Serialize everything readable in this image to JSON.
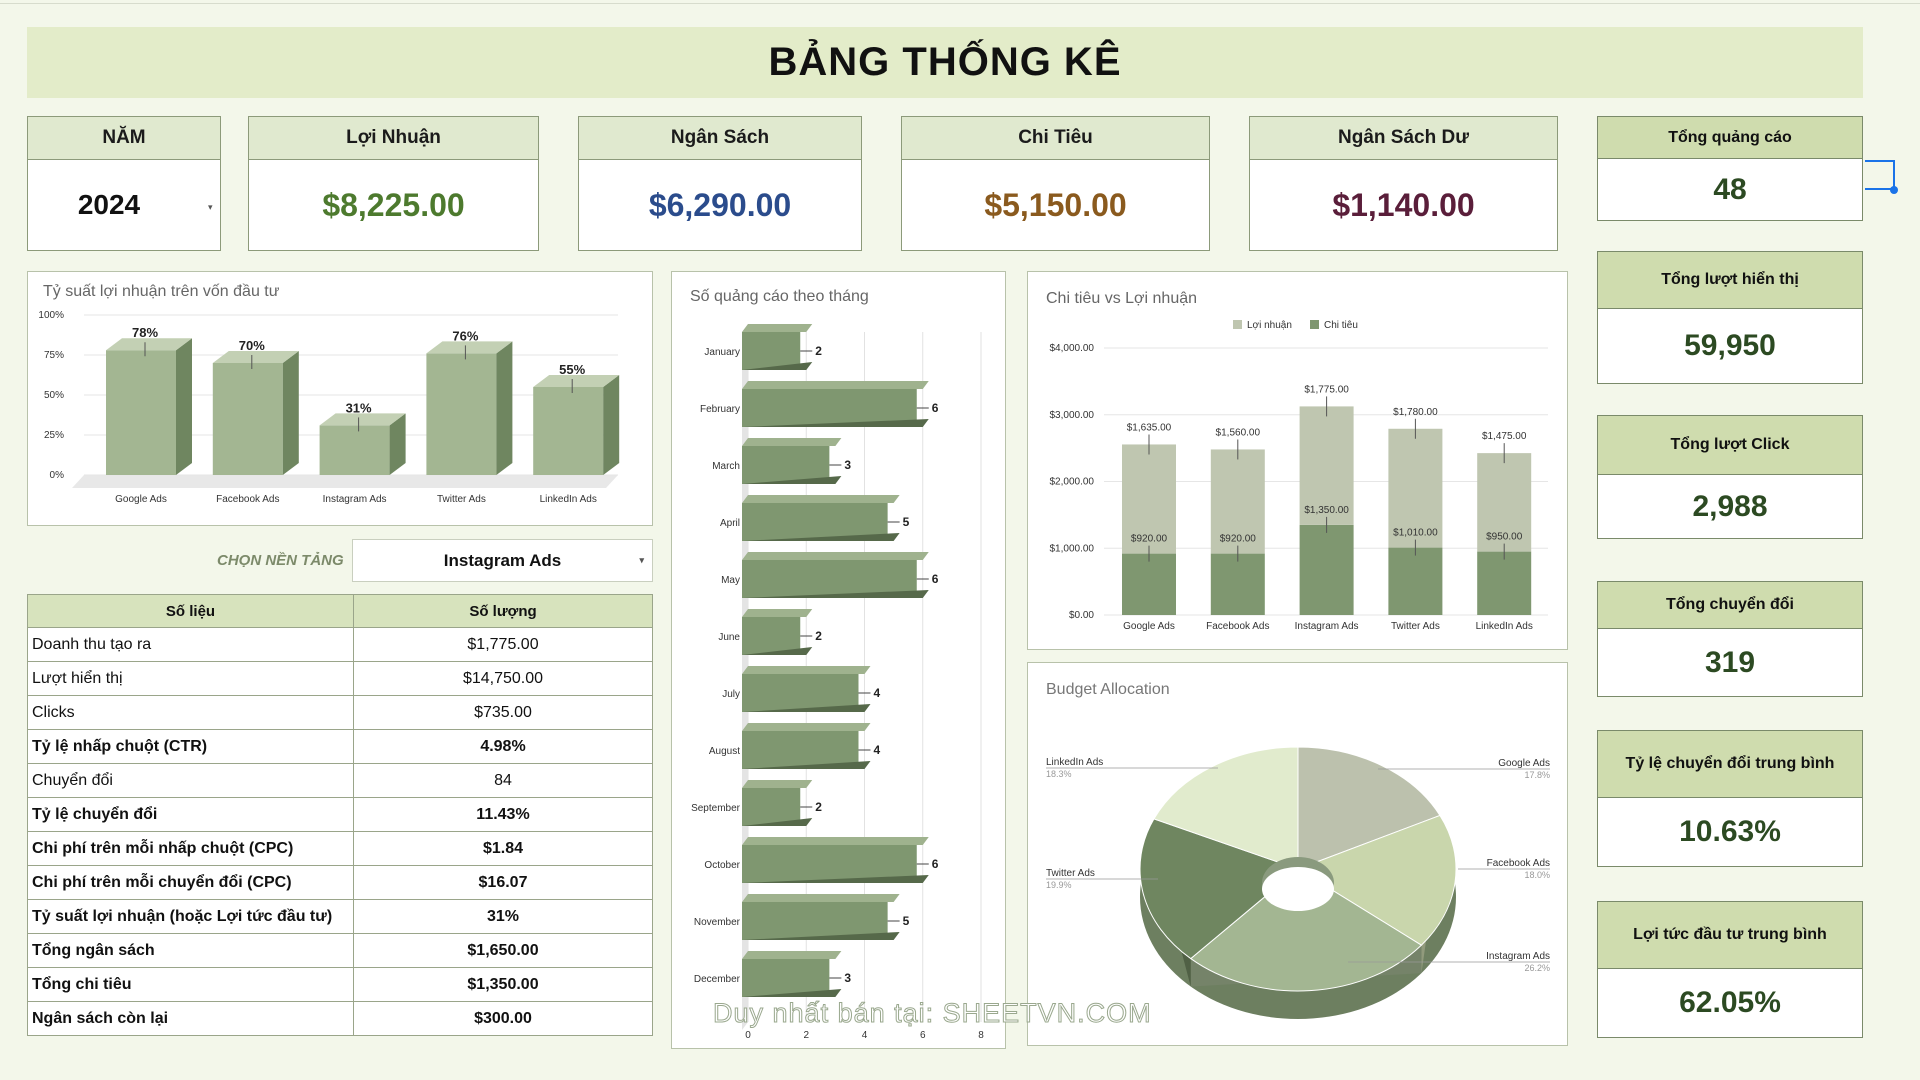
{
  "title": "BẢNG THỐNG KÊ",
  "top_cards": [
    {
      "label": "NĂM",
      "value": "2024",
      "color": "#111111"
    },
    {
      "label": "Lợi Nhuận",
      "value": "$8,225.00",
      "color": "#4d7a2e"
    },
    {
      "label": "Ngân Sách",
      "value": "$6,290.00",
      "color": "#2b4c8c"
    },
    {
      "label": "Chi Tiêu",
      "value": "$5,150.00",
      "color": "#8a5a1e"
    },
    {
      "label": "Ngân Sách Dư",
      "value": "$1,140.00",
      "color": "#5a1e3a"
    }
  ],
  "side_cards": [
    {
      "label": "Tổng quảng cáo",
      "value": "48"
    },
    {
      "label": "Tổng lượt hiển thị",
      "value": "59,950"
    },
    {
      "label": "Tổng lượt Click",
      "value": "2,988"
    },
    {
      "label": "Tổng chuyển đổi",
      "value": "319"
    },
    {
      "label": "Tỷ lệ chuyển đổi trung bình",
      "value": "10.63%"
    },
    {
      "label": "Lợi tức đầu tư trung bình",
      "value": "62.05%"
    }
  ],
  "platform_select": {
    "label": "CHỌN NỀN TẢNG",
    "value": "Instagram Ads"
  },
  "table": {
    "headers": [
      "Số liệu",
      "Số lượng"
    ],
    "rows": [
      {
        "k": "Doanh thu tạo ra",
        "v": "$1,775.00",
        "bold": false
      },
      {
        "k": "Lượt hiển thị",
        "v": "$14,750.00",
        "bold": false
      },
      {
        "k": "Clicks",
        "v": "$735.00",
        "bold": false
      },
      {
        "k": "Tỷ lệ nhấp chuột (CTR)",
        "v": "4.98%",
        "bold": true
      },
      {
        "k": "Chuyển đổi",
        "v": "84",
        "bold": false
      },
      {
        "k": "Tỷ lệ chuyển đổi",
        "v": "11.43%",
        "bold": true
      },
      {
        "k": "Chi phí trên mỗi nhấp chuột (CPC)",
        "v": "$1.84",
        "bold": true
      },
      {
        "k": "Chi phí trên mỗi chuyển đổi (CPC)",
        "v": "$16.07",
        "bold": true
      },
      {
        "k": "Tỷ suất lợi nhuận (hoặc Lợi tức đầu tư)",
        "v": "31%",
        "bold": true
      },
      {
        "k": "Tổng ngân sách",
        "v": "$1,650.00",
        "bold": true
      },
      {
        "k": "Tổng chi tiêu",
        "v": "$1,350.00",
        "bold": true
      },
      {
        "k": "Ngân sách còn lại",
        "v": "$300.00",
        "bold": true
      }
    ]
  },
  "watermark": "Duy nhất bán tại: SHEETVN.COM",
  "chart_data": [
    {
      "type": "bar",
      "title": "Tỷ suất lợi nhuận trên vốn đầu tư",
      "categories": [
        "Google Ads",
        "Facebook Ads",
        "Instagram Ads",
        "Twitter Ads",
        "LinkedIn Ads"
      ],
      "values": [
        78,
        70,
        31,
        76,
        55
      ],
      "data_labels": [
        "78%",
        "70%",
        "31%",
        "76%",
        "55%"
      ],
      "yticks": [
        "0%",
        "25%",
        "50%",
        "75%",
        "100%"
      ],
      "ylim": [
        0,
        100
      ]
    },
    {
      "type": "bar",
      "orientation": "horizontal",
      "title": "Số quảng cáo theo tháng",
      "categories": [
        "January",
        "February",
        "March",
        "April",
        "May",
        "June",
        "July",
        "August",
        "September",
        "October",
        "November",
        "December"
      ],
      "values": [
        2,
        6,
        3,
        5,
        6,
        2,
        4,
        4,
        2,
        6,
        5,
        3
      ],
      "xticks": [
        "0",
        "2",
        "4",
        "6",
        "8"
      ],
      "xlim": [
        0,
        8
      ]
    },
    {
      "type": "bar",
      "stacked": true,
      "title": "Chi tiêu vs Lợi nhuận",
      "categories": [
        "Google Ads",
        "Facebook Ads",
        "Instagram Ads",
        "Twitter Ads",
        "LinkedIn Ads"
      ],
      "series": [
        {
          "name": "Chi tiêu",
          "values": [
            920,
            920,
            1350,
            1010,
            950
          ],
          "labels": [
            "$920.00",
            "$920.00",
            "$1,350.00",
            "$1,010.00",
            "$950.00"
          ],
          "color": "#7f9770"
        },
        {
          "name": "Lợi nhuận",
          "values": [
            1635,
            1560,
            1775,
            1780,
            1475
          ],
          "labels": [
            "$1,635.00",
            "$1,560.00",
            "$1,775.00",
            "$1,780.00",
            "$1,475.00"
          ],
          "color": "#bfc6b0"
        }
      ],
      "legend": [
        "Lợi nhuận",
        "Chi tiêu"
      ],
      "yticks": [
        "$0.00",
        "$1,000.00",
        "$2,000.00",
        "$3,000.00",
        "$4,000.00"
      ],
      "ylim": [
        0,
        4000
      ]
    },
    {
      "type": "pie",
      "title": "Budget Allocation",
      "labels": [
        "Google Ads",
        "Facebook Ads",
        "Instagram Ads",
        "Twitter Ads",
        "LinkedIn Ads"
      ],
      "values": [
        17.8,
        18.0,
        26.2,
        19.9,
        18.3
      ],
      "pct_labels": [
        "17.8%",
        "18.0%",
        "26.2%",
        "19.9%",
        "18.3%"
      ],
      "colors": [
        "#bcc1ad",
        "#c9d6ac",
        "#a3b692",
        "#6f8660",
        "#e1ebcd"
      ]
    }
  ]
}
